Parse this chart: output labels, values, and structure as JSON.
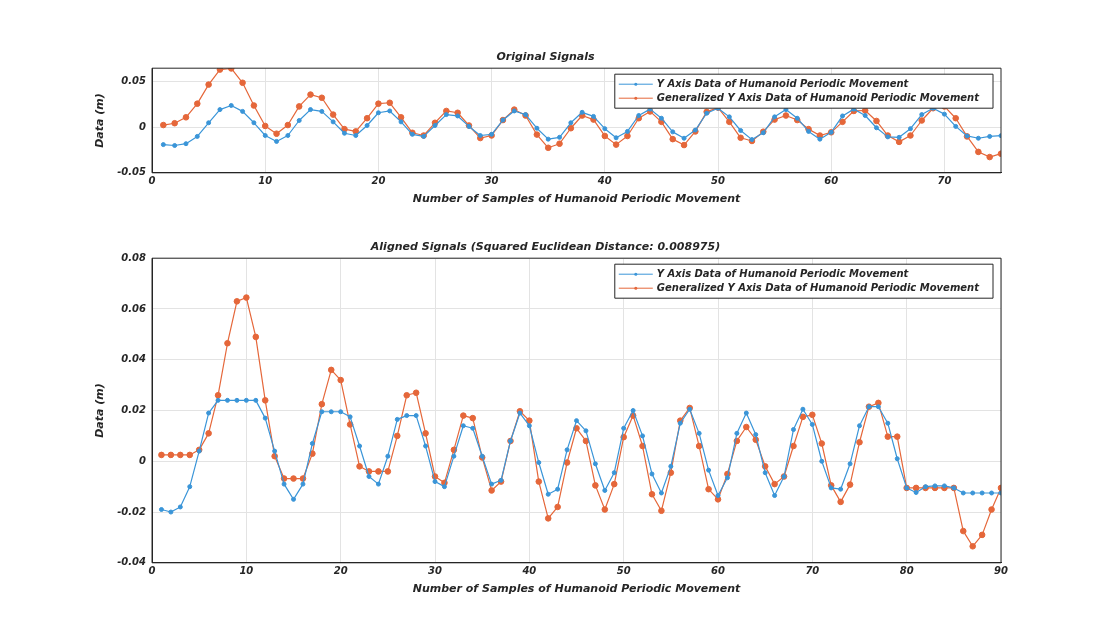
{
  "chart_data": [
    {
      "type": "line",
      "title": "Original Signals",
      "xlabel": "Number of Samples of Humanoid Periodic Movement",
      "ylabel": "Data (m)",
      "x": [
        1,
        2,
        3,
        4,
        5,
        6,
        7,
        8,
        9,
        10,
        11,
        12,
        13,
        14,
        15,
        16,
        17,
        18,
        19,
        20,
        21,
        22,
        23,
        24,
        25,
        26,
        27,
        28,
        29,
        30,
        31,
        32,
        33,
        34,
        35,
        36,
        37,
        38,
        39,
        40,
        41,
        42,
        43,
        44,
        45,
        46,
        47,
        48,
        49,
        50,
        51,
        52,
        53,
        54,
        55,
        56,
        57,
        58,
        59,
        60,
        61,
        62,
        63,
        64,
        65,
        66,
        67,
        68,
        69,
        70,
        71,
        72,
        73,
        74,
        75
      ],
      "series": [
        {
          "name": "Y Axis Data of Humanoid Periodic Movement",
          "color": "#3a95d8",
          "values": [
            -0.019,
            -0.02,
            -0.018,
            -0.01,
            0.005,
            0.0195,
            0.024,
            0.0175,
            0.005,
            -0.009,
            -0.0155,
            -0.009,
            0.0075,
            0.0195,
            0.0175,
            0.006,
            -0.0065,
            -0.009,
            0.002,
            0.016,
            0.018,
            0.006,
            -0.0077,
            -0.01,
            0.002,
            0.014,
            0.0125,
            0.001,
            -0.009,
            -0.0077,
            0.008,
            0.018,
            0.014,
            -0.001,
            -0.013,
            -0.011,
            0.005,
            0.0165,
            0.012,
            -0.0015,
            -0.0115,
            -0.0045,
            0.013,
            0.02,
            0.01,
            -0.005,
            -0.012,
            -0.003,
            0.0155,
            0.021,
            0.0115,
            -0.0035,
            -0.0135,
            -0.006,
            0.0115,
            0.0195,
            0.01,
            -0.0045,
            -0.013,
            -0.0055,
            0.0125,
            0.02,
            0.013,
            -0.0005,
            -0.0105,
            -0.011,
            -0.0015,
            0.014,
            0.021,
            0.0145,
            0.001,
            -0.0095,
            -0.012,
            -0.01,
            -0.0092
          ]
        },
        {
          "name": "Generalized Y Axis Data of Humanoid Periodic Movement",
          "color": "#e5673a",
          "values": [
            0.0025,
            0.0045,
            0.011,
            0.026,
            0.047,
            0.0635,
            0.0647,
            0.049,
            0.024,
            0.0015,
            -0.007,
            0.0025,
            0.023,
            0.036,
            0.0325,
            0.014,
            -0.002,
            -0.0045,
            0.01,
            0.026,
            0.027,
            0.011,
            -0.006,
            -0.009,
            0.005,
            0.018,
            0.016,
            0.002,
            -0.0118,
            -0.009,
            0.008,
            0.0195,
            0.013,
            -0.008,
            -0.0225,
            -0.018,
            -0.001,
            0.013,
            0.0085,
            -0.0095,
            -0.019,
            -0.0095,
            0.01,
            0.0175,
            0.006,
            -0.013,
            -0.0195,
            -0.0045,
            0.017,
            0.0217,
            0.006,
            -0.0115,
            -0.015,
            -0.0048,
            0.0085,
            0.013,
            0.008,
            -0.002,
            -0.009,
            -0.0055,
            0.006,
            0.018,
            0.0185,
            0.007,
            -0.009,
            -0.016,
            -0.009,
            0.0075,
            0.021,
            0.023,
            0.01,
            -0.01,
            -0.027,
            -0.0327,
            -0.029
          ]
        }
      ],
      "xlim": [
        0,
        75
      ],
      "xticks": [
        0,
        10,
        20,
        30,
        40,
        50,
        60,
        70
      ],
      "ylim": [
        -0.05,
        0.065
      ],
      "yticks": [
        -0.05,
        0,
        0.05
      ],
      "grid": true,
      "legend": "top right",
      "marker": "circle",
      "line_style": "solid"
    },
    {
      "type": "line",
      "title": "Aligned Signals (Squared Euclidean Distance: 0.008975)",
      "xlabel": "Number of Samples of Humanoid Periodic Movement",
      "ylabel": "Data (m)",
      "x": [
        1,
        2,
        3,
        4,
        5,
        6,
        7,
        8,
        9,
        10,
        11,
        12,
        13,
        14,
        15,
        16,
        17,
        18,
        19,
        20,
        21,
        22,
        23,
        24,
        25,
        26,
        27,
        28,
        29,
        30,
        31,
        32,
        33,
        34,
        35,
        36,
        37,
        38,
        39,
        40,
        41,
        42,
        43,
        44,
        45,
        46,
        47,
        48,
        49,
        50,
        51,
        52,
        53,
        54,
        55,
        56,
        57,
        58,
        59,
        60,
        61,
        62,
        63,
        64,
        65,
        66,
        67,
        68,
        69,
        70,
        71,
        72,
        73,
        74,
        75,
        76,
        77,
        78,
        79,
        80,
        81,
        82,
        83,
        84,
        85,
        86,
        87,
        88,
        89,
        90
      ],
      "series": [
        {
          "name": "Y Axis Data of Humanoid Periodic Movement",
          "color": "#3a95d8",
          "values": [
            -0.019,
            -0.02,
            -0.018,
            -0.01,
            0.004,
            0.019,
            0.024,
            0.024,
            0.024,
            0.024,
            0.024,
            0.017,
            0.004,
            -0.009,
            -0.015,
            -0.009,
            0.007,
            0.0195,
            0.0195,
            0.0195,
            0.0175,
            0.006,
            -0.006,
            -0.009,
            0.002,
            0.0165,
            0.018,
            0.018,
            0.006,
            -0.008,
            -0.01,
            0.002,
            0.014,
            0.013,
            0.002,
            -0.009,
            -0.0075,
            0.008,
            0.019,
            0.014,
            -0.0005,
            -0.013,
            -0.011,
            0.0045,
            0.016,
            0.012,
            -0.001,
            -0.0115,
            -0.0045,
            0.013,
            0.02,
            0.01,
            -0.005,
            -0.0125,
            -0.002,
            0.015,
            0.0205,
            0.011,
            -0.0035,
            -0.0135,
            -0.0065,
            0.011,
            0.019,
            0.0105,
            -0.0045,
            -0.0135,
            -0.006,
            0.0125,
            0.0205,
            0.0145,
            0.0,
            -0.0105,
            -0.011,
            -0.001,
            0.014,
            0.0215,
            0.0215,
            0.015,
            0.001,
            -0.0105,
            -0.0123,
            -0.01,
            -0.0097,
            -0.0097,
            -0.0105,
            -0.0125,
            -0.0125,
            -0.0125,
            -0.0125,
            -0.0125
          ]
        },
        {
          "name": "Generalized Y Axis Data of Humanoid Periodic Movement",
          "color": "#e5673a",
          "values": [
            0.0025,
            0.0025,
            0.0025,
            0.0025,
            0.0045,
            0.011,
            0.026,
            0.0465,
            0.063,
            0.0645,
            0.049,
            0.024,
            0.002,
            -0.0068,
            -0.0068,
            -0.0068,
            0.003,
            0.0225,
            0.036,
            0.032,
            0.0145,
            -0.002,
            -0.004,
            -0.004,
            -0.004,
            0.01,
            0.026,
            0.027,
            0.011,
            -0.006,
            -0.0085,
            0.0045,
            0.018,
            0.017,
            0.0015,
            -0.0115,
            -0.008,
            0.008,
            0.0197,
            0.016,
            -0.008,
            -0.0225,
            -0.018,
            -0.0005,
            0.013,
            0.008,
            -0.0095,
            -0.019,
            -0.009,
            0.0095,
            0.018,
            0.006,
            -0.013,
            -0.0195,
            -0.0045,
            0.016,
            0.021,
            0.006,
            -0.011,
            -0.015,
            -0.005,
            0.008,
            0.0135,
            0.0085,
            -0.002,
            -0.009,
            -0.006,
            0.006,
            0.0175,
            0.0183,
            0.007,
            -0.0095,
            -0.016,
            -0.0092,
            0.0075,
            0.0215,
            0.023,
            0.0097,
            0.0097,
            -0.0105,
            -0.0105,
            -0.0105,
            -0.0105,
            -0.0105,
            -0.0105,
            -0.0275,
            -0.0335,
            -0.029,
            -0.019,
            -0.0105
          ]
        }
      ],
      "xlim": [
        0,
        90
      ],
      "xticks": [
        0,
        10,
        20,
        30,
        40,
        50,
        60,
        70,
        80,
        90
      ],
      "ylim": [
        -0.04,
        0.08
      ],
      "yticks": [
        -0.04,
        -0.02,
        0,
        0.02,
        0.04,
        0.06,
        0.08
      ],
      "grid": true,
      "legend": "top right",
      "marker": "circle",
      "line_style": "solid"
    }
  ]
}
